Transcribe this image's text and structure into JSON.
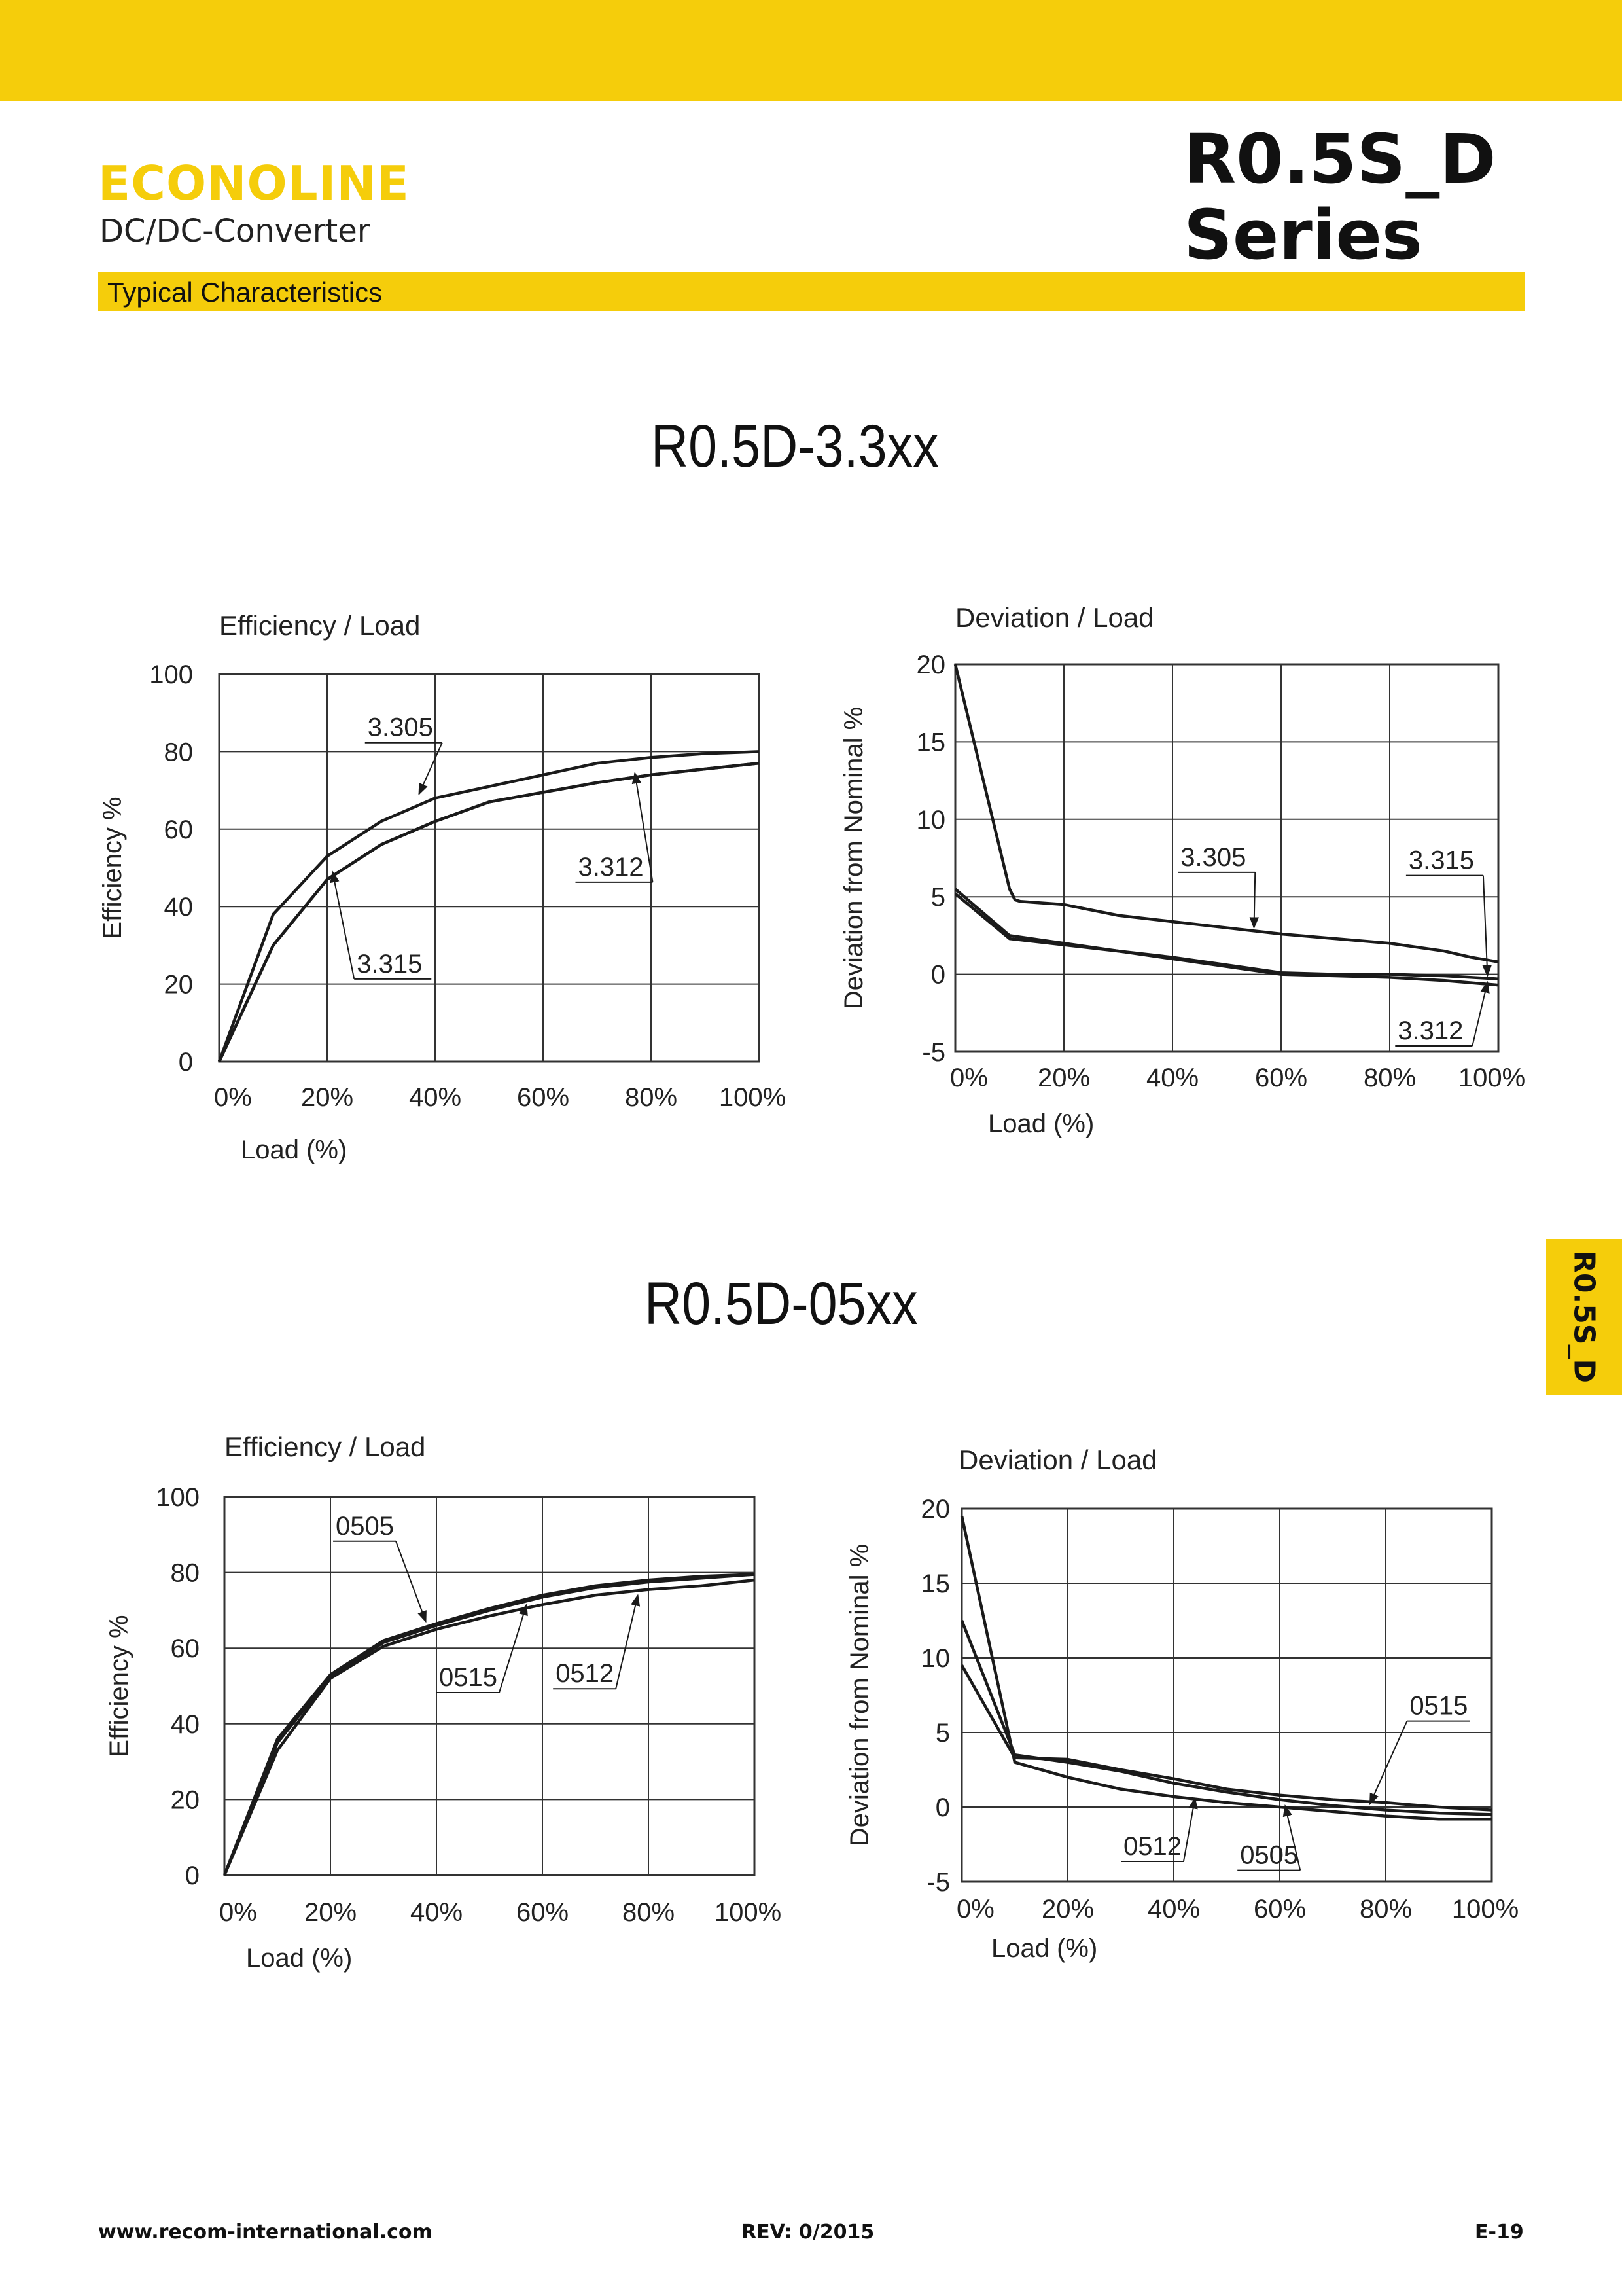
{
  "header": {
    "brand": "ECONOLINE",
    "product_type": "DC/DC-Converter",
    "series_line1": "R0.5S_D",
    "series_line2": "Series",
    "section": "Typical Characteristics"
  },
  "side_tab": "R0.5S_D",
  "groups": [
    {
      "title": "R0.5D-3.3xx"
    },
    {
      "title": "R0.5D-05xx"
    }
  ],
  "footer": {
    "website": "www.recom-international.com",
    "revision": "REV: 0/2015",
    "page": "E-19"
  },
  "colors": {
    "accent": "#f5cd0b",
    "line": "#1a1a1a",
    "grid": "#333333"
  },
  "chart_data": [
    {
      "type": "line",
      "title": "Efficiency / Load",
      "xlabel": "Load (%)",
      "ylabel": "Efficiency %",
      "xlim": [
        0,
        100
      ],
      "ylim": [
        0,
        100
      ],
      "x_ticks": [
        "0%",
        "20%",
        "40%",
        "60%",
        "80%",
        "100%"
      ],
      "y_ticks": [
        "0",
        "20",
        "40",
        "60",
        "80",
        "100"
      ],
      "grid": true,
      "series": [
        {
          "name": "3.305",
          "x": [
            0,
            10,
            20,
            30,
            40,
            50,
            60,
            70,
            80,
            90,
            100
          ],
          "y": [
            0,
            38,
            53,
            62,
            68,
            71,
            74,
            77,
            78.5,
            79.5,
            80
          ]
        },
        {
          "name": "3.312",
          "x": [
            0,
            10,
            20,
            30,
            40,
            50,
            60,
            70,
            80,
            90,
            100
          ],
          "y": [
            0,
            30,
            47,
            56,
            62,
            67,
            69.5,
            72,
            74,
            75.5,
            77
          ]
        },
        {
          "name": "3.315",
          "x": [
            0,
            10,
            20,
            30,
            40,
            50,
            60,
            70,
            80,
            90,
            100
          ],
          "y": [
            0,
            30,
            47,
            56,
            62,
            67,
            69.5,
            72,
            74,
            75.5,
            77
          ]
        }
      ],
      "annotations": [
        {
          "text": "3.305",
          "x": 27,
          "y": 84,
          "target_x": 37,
          "target_y": 69
        },
        {
          "text": "3.312",
          "x": 66,
          "y": 48,
          "target_x": 77,
          "target_y": 74.5
        },
        {
          "text": "3.315",
          "x": 25,
          "y": 23,
          "target_x": 21,
          "target_y": 49
        }
      ]
    },
    {
      "type": "line",
      "title": "Deviation / Load",
      "xlabel": "Load (%)",
      "ylabel": "Deviation from Nominal %",
      "xlim": [
        0,
        100
      ],
      "ylim": [
        -5,
        20
      ],
      "x_ticks": [
        "0%",
        "20%",
        "40%",
        "60%",
        "80%",
        "100%"
      ],
      "y_ticks": [
        "-5",
        "0",
        "5",
        "10",
        "15",
        "20"
      ],
      "grid": true,
      "series": [
        {
          "name": "3.305",
          "x": [
            0,
            10,
            11,
            12,
            20,
            30,
            40,
            50,
            60,
            70,
            80,
            90,
            95,
            100
          ],
          "y": [
            20,
            5.5,
            4.8,
            4.7,
            4.5,
            3.8,
            3.4,
            3.0,
            2.6,
            2.3,
            2.0,
            1.5,
            1.1,
            0.8
          ]
        },
        {
          "name": "3.312",
          "x": [
            0,
            10,
            20,
            30,
            40,
            50,
            60,
            70,
            80,
            90,
            100
          ],
          "y": [
            5.5,
            2.5,
            2.0,
            1.5,
            1.0,
            0.5,
            0.0,
            -0.1,
            -0.2,
            -0.4,
            -0.7
          ]
        },
        {
          "name": "3.315",
          "x": [
            0,
            10,
            20,
            30,
            40,
            50,
            60,
            70,
            80,
            90,
            100
          ],
          "y": [
            5.2,
            2.3,
            1.9,
            1.5,
            1.1,
            0.6,
            0.1,
            0.0,
            0.0,
            -0.1,
            -0.3
          ]
        }
      ],
      "annotations": [
        {
          "text": "3.305",
          "x": 41,
          "y": 7,
          "target_x": 55,
          "target_y": 3.0
        },
        {
          "text": "3.315",
          "x": 83,
          "y": 6.8,
          "target_x": 98,
          "target_y": -0.1
        },
        {
          "text": "3.312",
          "x": 81,
          "y": -4.2,
          "target_x": 98,
          "target_y": -0.5
        }
      ]
    },
    {
      "type": "line",
      "title": "Efficiency / Load",
      "xlabel": "Load (%)",
      "ylabel": "Efficiency %",
      "xlim": [
        0,
        100
      ],
      "ylim": [
        0,
        100
      ],
      "x_ticks": [
        "0%",
        "20%",
        "40%",
        "60%",
        "80%",
        "100%"
      ],
      "y_ticks": [
        "0",
        "20",
        "40",
        "60",
        "80",
        "100"
      ],
      "grid": true,
      "series": [
        {
          "name": "0505",
          "x": [
            0,
            10,
            20,
            30,
            40,
            50,
            60,
            70,
            80,
            90,
            100
          ],
          "y": [
            0,
            36,
            53,
            62,
            66.5,
            70.5,
            74,
            76.5,
            78,
            79,
            79.5
          ]
        },
        {
          "name": "0512",
          "x": [
            0,
            10,
            20,
            30,
            40,
            50,
            60,
            70,
            80,
            90,
            100
          ],
          "y": [
            0,
            35,
            52.5,
            61.5,
            66,
            70,
            73.5,
            76,
            77.5,
            78.5,
            79.5
          ]
        },
        {
          "name": "0515",
          "x": [
            0,
            10,
            20,
            30,
            40,
            50,
            60,
            70,
            80,
            90,
            100
          ],
          "y": [
            0,
            33,
            52,
            60.5,
            65,
            68.5,
            71.5,
            74,
            75.5,
            76.5,
            78
          ]
        }
      ],
      "annotations": [
        {
          "text": "0505",
          "x": 20.5,
          "y": 90,
          "target_x": 38,
          "target_y": 67
        },
        {
          "text": "0515",
          "x": 40,
          "y": 50,
          "target_x": 57,
          "target_y": 71.5
        },
        {
          "text": "0512",
          "x": 62,
          "y": 51,
          "target_x": 78,
          "target_y": 74
        }
      ]
    },
    {
      "type": "line",
      "title": "Deviation / Load",
      "xlabel": "Load (%)",
      "ylabel": "Deviation from Nominal %",
      "xlim": [
        0,
        100
      ],
      "ylim": [
        -5,
        20
      ],
      "x_ticks": [
        "0%",
        "20%",
        "40%",
        "60%",
        "80%",
        "100%"
      ],
      "y_ticks": [
        "-5",
        "0",
        "5",
        "10",
        "15",
        "20"
      ],
      "grid": true,
      "series": [
        {
          "name": "0505",
          "x": [
            0,
            10,
            20,
            30,
            40,
            50,
            60,
            70,
            80,
            90,
            100
          ],
          "y": [
            19.5,
            3.0,
            2.0,
            1.2,
            0.7,
            0.3,
            0.0,
            -0.3,
            -0.6,
            -0.8,
            -0.8
          ]
        },
        {
          "name": "0512",
          "x": [
            0,
            10,
            20,
            30,
            40,
            50,
            60,
            70,
            80,
            90,
            100
          ],
          "y": [
            12.5,
            3.5,
            3.0,
            2.4,
            1.6,
            1.0,
            0.5,
            0.1,
            -0.2,
            -0.4,
            -0.5
          ]
        },
        {
          "name": "0515",
          "x": [
            0,
            10,
            20,
            30,
            40,
            50,
            60,
            70,
            80,
            90,
            100
          ],
          "y": [
            9.5,
            3.3,
            3.2,
            2.5,
            1.9,
            1.2,
            0.8,
            0.5,
            0.3,
            0.0,
            -0.2
          ]
        }
      ],
      "annotations": [
        {
          "text": "0515",
          "x": 84,
          "y": 6.2,
          "target_x": 77,
          "target_y": 0.2
        },
        {
          "text": "0512",
          "x": 30,
          "y": -3.2,
          "target_x": 44,
          "target_y": 0.6
        },
        {
          "text": "0505",
          "x": 52,
          "y": -3.8,
          "target_x": 61,
          "target_y": 0.1
        }
      ]
    }
  ]
}
